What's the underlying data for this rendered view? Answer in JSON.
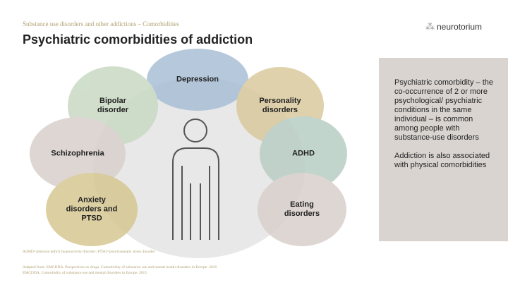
{
  "header": {
    "subtitle": "Substance use disorders and other addictions – Comorbidities",
    "title": "Psychiatric comorbidities of addiction",
    "logo_text": "neurotorium"
  },
  "diagram": {
    "center_icon": "person-icon",
    "conditions": [
      {
        "label": "Depression",
        "color": "#a9bfd6"
      },
      {
        "label": "Bipolar\ndisorder",
        "color": "#c9d9c4"
      },
      {
        "label": "Personality\ndisorders",
        "color": "#d9c99e"
      },
      {
        "label": "Schizophrenia",
        "color": "#d8d0cc"
      },
      {
        "label": "ADHD",
        "color": "#b8cec4"
      },
      {
        "label": "Anxiety\ndisorders and\nPTSD",
        "color": "#d6c792"
      },
      {
        "label": "Eating\ndisorders",
        "color": "#d8d0cc"
      }
    ]
  },
  "panel": {
    "paragraph1": "Psychiatric comorbidity – the co-occurrence of 2 or more psychological/ psychiatric conditions in the same individual – is common among people with substance-use disorders",
    "paragraph2": "Addiction is also associated with physical comorbidities"
  },
  "footer": {
    "abbreviations": "ADHD=attention deficit hyperactivity disorder; PTSD=post-traumatic stress disorder",
    "reference1": "Adapted from: EMCDDA. Perspectives on drugs. Comorbidity of substance use and mental health disorders in Europe. 2016",
    "reference2": "EMCDDA. Comorbidity of substance use and mental disorders in Europe. 2015"
  }
}
